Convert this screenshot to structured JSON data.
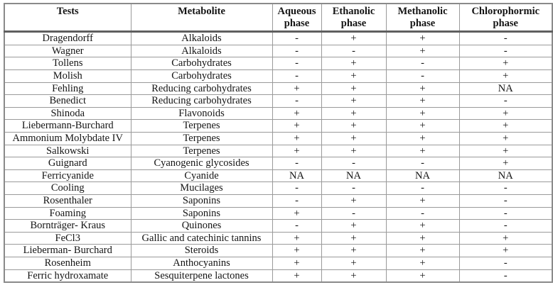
{
  "table": {
    "columns": [
      "Tests",
      "Metabolite",
      "Aqueous phase",
      "Ethanolic phase",
      "Methanolic phase",
      "Chlorophormic phase"
    ],
    "rows": [
      {
        "test": "Dragendorff",
        "metabolite": "Alkaloids",
        "values": [
          "-",
          "+",
          "+",
          "-"
        ]
      },
      {
        "test": "Wagner",
        "metabolite": "Alkaloids",
        "values": [
          "-",
          "-",
          "+",
          "-"
        ]
      },
      {
        "test": "Tollens",
        "metabolite": "Carbohydrates",
        "values": [
          "-",
          "+",
          "-",
          "+"
        ]
      },
      {
        "test": "Molish",
        "metabolite": "Carbohydrates",
        "values": [
          "-",
          "+",
          "-",
          "+"
        ]
      },
      {
        "test": "Fehling",
        "metabolite": "Reducing carbohydrates",
        "values": [
          "+",
          "+",
          "+",
          "NA"
        ]
      },
      {
        "test": "Benedict",
        "metabolite": "Reducing carbohydrates",
        "values": [
          "-",
          "+",
          "+",
          "-"
        ]
      },
      {
        "test": "Shinoda",
        "metabolite": "Flavonoids",
        "values": [
          "+",
          "+",
          "+",
          "+"
        ]
      },
      {
        "test": "Liebermann-Burchard",
        "metabolite": "Terpenes",
        "values": [
          "+",
          "+",
          "+",
          "+"
        ]
      },
      {
        "test": "Ammonium Molybdate IV",
        "metabolite": "Terpenes",
        "values": [
          "+",
          "+",
          "+",
          "+"
        ]
      },
      {
        "test": "Salkowski",
        "metabolite": "Terpenes",
        "values": [
          "+",
          "+",
          "+",
          "+"
        ]
      },
      {
        "test": "Guignard",
        "metabolite": "Cyanogenic glycosides",
        "values": [
          "-",
          "-",
          "-",
          "+"
        ]
      },
      {
        "test": "Ferricyanide",
        "metabolite": "Cyanide",
        "values": [
          "NA",
          "NA",
          "NA",
          "NA"
        ]
      },
      {
        "test": "Cooling",
        "metabolite": "Mucilages",
        "values": [
          "-",
          "-",
          "-",
          "-"
        ]
      },
      {
        "test": "Rosenthaler",
        "metabolite": "Saponins",
        "values": [
          "-",
          "+",
          "+",
          "-"
        ]
      },
      {
        "test": "Foaming",
        "metabolite": "Saponins",
        "values": [
          "+",
          "-",
          "-",
          "-"
        ]
      },
      {
        "test": "Bornträger- Kraus",
        "metabolite": "Quinones",
        "values": [
          "-",
          "+",
          "+",
          "-"
        ]
      },
      {
        "test": "FeCl3",
        "metabolite": "Gallic and catechinic tannins",
        "values": [
          "+",
          "+",
          "+",
          "+"
        ]
      },
      {
        "test": "Lieberman- Burchard",
        "metabolite": "Steroids",
        "values": [
          "+",
          "+",
          "+",
          "+"
        ]
      },
      {
        "test": "Rosenheim",
        "metabolite": "Anthocyanins",
        "values": [
          "+",
          "+",
          "+",
          "-"
        ]
      },
      {
        "test": "Ferric hydroxamate",
        "metabolite": "Sesquiterpene lactones",
        "values": [
          "+",
          "+",
          "+",
          "-"
        ]
      }
    ]
  }
}
